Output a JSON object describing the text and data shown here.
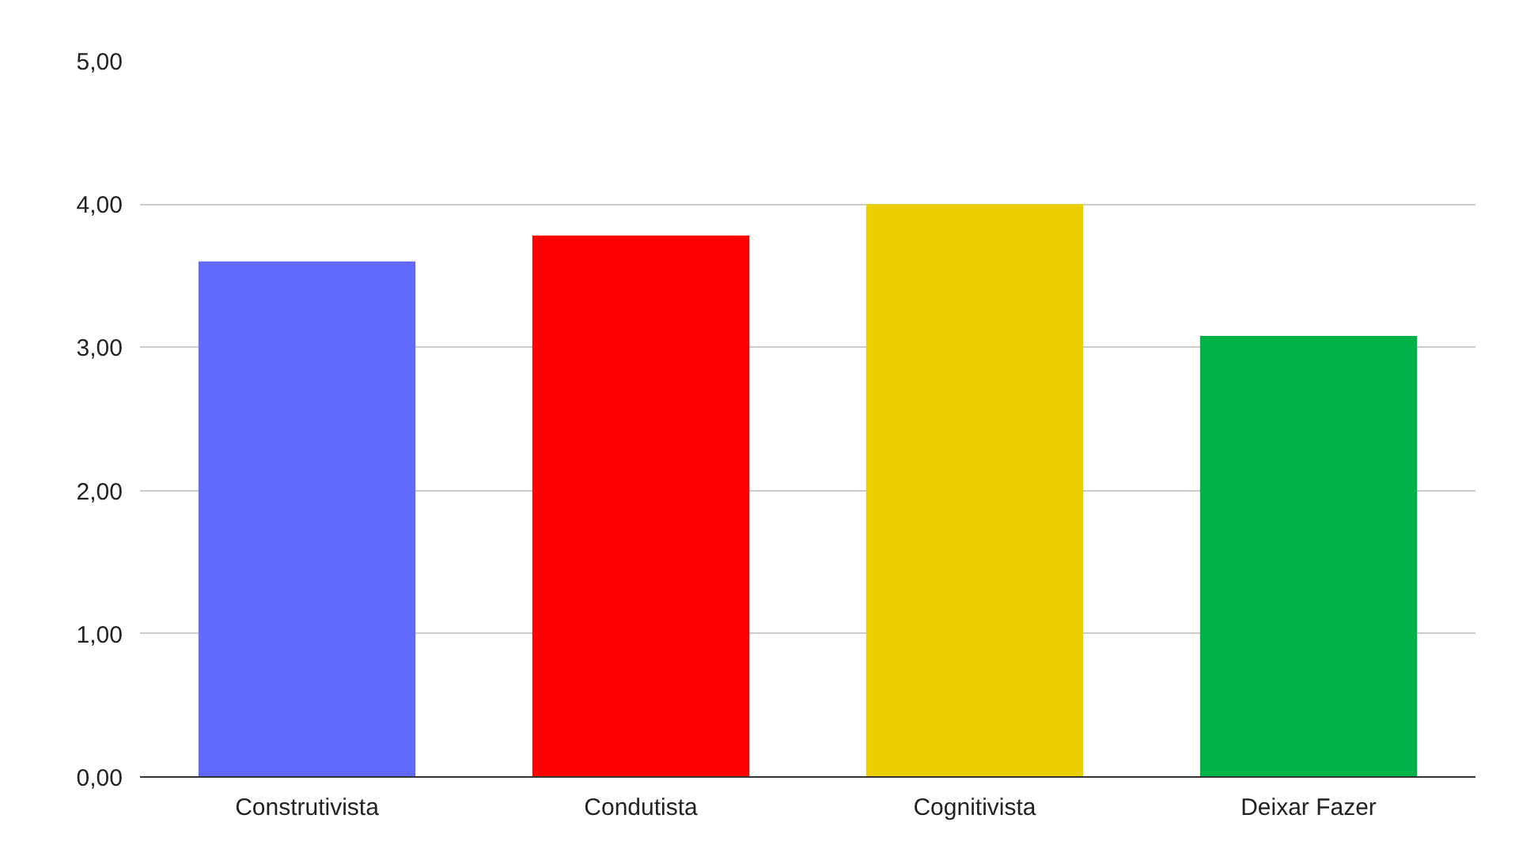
{
  "chart_data": {
    "type": "bar",
    "categories": [
      "Construtivista",
      "Condutista",
      "Cognitivista",
      "Deixar Fazer"
    ],
    "values": [
      3.6,
      3.78,
      4.0,
      3.08
    ],
    "colors": [
      "#6169ff",
      "#ff0000",
      "#ebce00",
      "#00b347"
    ],
    "ylim": [
      0,
      5
    ],
    "yticks": [
      {
        "value": 0,
        "label": "0,00"
      },
      {
        "value": 1,
        "label": "1,00"
      },
      {
        "value": 2,
        "label": "2,00"
      },
      {
        "value": 3,
        "label": "3,00"
      },
      {
        "value": 4,
        "label": "4,00"
      },
      {
        "value": 5,
        "label": "5,00"
      }
    ],
    "grid": "y"
  }
}
